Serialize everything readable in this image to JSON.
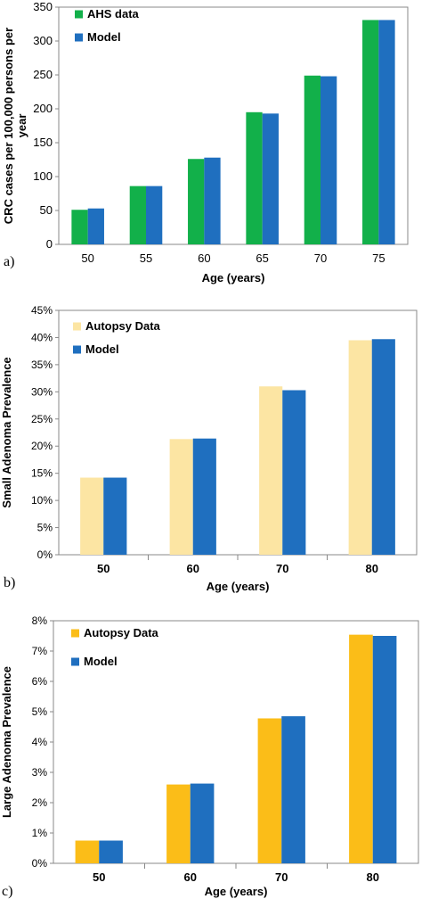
{
  "chart_data": [
    {
      "type": "bar",
      "panel_label": "a)",
      "title": "",
      "xlabel": "Age (years)",
      "ylabel": "CRC cases per 100,000 persons per year",
      "categories": [
        "50",
        "55",
        "60",
        "65",
        "70",
        "75"
      ],
      "ylim": [
        0,
        350
      ],
      "yticks": [
        "0",
        "50",
        "100",
        "150",
        "200",
        "250",
        "300",
        "350"
      ],
      "series": [
        {
          "name": "AHS data",
          "color": "#12b04a",
          "values": [
            51,
            86,
            126,
            195,
            249,
            331
          ]
        },
        {
          "name": "Model",
          "color": "#1f6fbf",
          "values": [
            53,
            86,
            128,
            193,
            248,
            331
          ]
        }
      ],
      "legend_position": "top-left",
      "grid": false
    },
    {
      "type": "bar",
      "panel_label": "b)",
      "title": "",
      "xlabel": "Age (years)",
      "ylabel": "Small Adenoma Prevalence",
      "categories": [
        "50",
        "60",
        "70",
        "80"
      ],
      "ylim": [
        0,
        0.45
      ],
      "yticks": [
        "0%",
        "5%",
        "10%",
        "15%",
        "20%",
        "25%",
        "30%",
        "35%",
        "40%",
        "45%"
      ],
      "series": [
        {
          "name": "Autopsy Data",
          "color": "#fce5a3",
          "values": [
            0.142,
            0.213,
            0.31,
            0.395
          ]
        },
        {
          "name": "Model",
          "color": "#1f6fbf",
          "values": [
            0.142,
            0.214,
            0.303,
            0.397
          ]
        }
      ],
      "legend_position": "top-left",
      "grid": false
    },
    {
      "type": "bar",
      "panel_label": "c)",
      "title": "",
      "xlabel": "Age (years)",
      "ylabel": "Large Adenoma Prevalence",
      "categories": [
        "50",
        "60",
        "70",
        "80"
      ],
      "ylim": [
        0,
        0.08
      ],
      "yticks": [
        "0%",
        "1%",
        "2%",
        "3%",
        "4%",
        "5%",
        "6%",
        "7%",
        "8%"
      ],
      "series": [
        {
          "name": "Autopsy Data",
          "color": "#fbbd18",
          "values": [
            0.0075,
            0.026,
            0.0478,
            0.0754
          ]
        },
        {
          "name": "Model",
          "color": "#1f6fbf",
          "values": [
            0.0075,
            0.0263,
            0.0485,
            0.075
          ]
        }
      ],
      "legend_position": "top-left",
      "grid": false
    }
  ]
}
